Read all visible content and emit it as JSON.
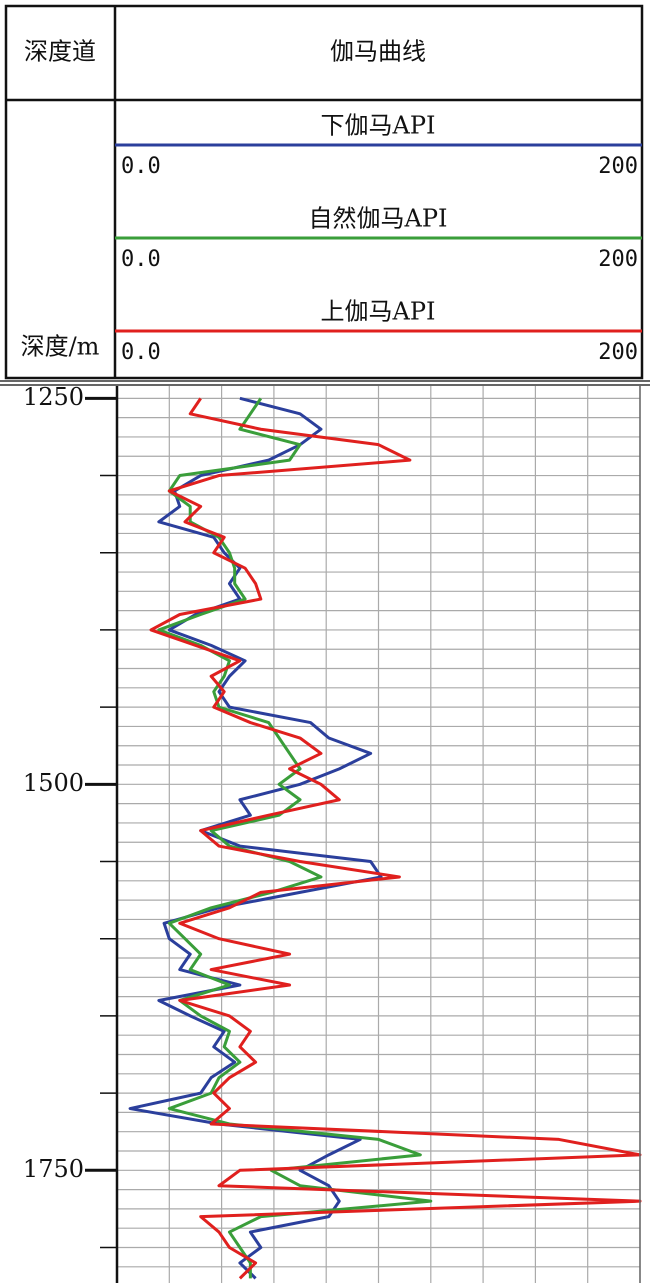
{
  "chart_data": {
    "type": "line",
    "header": {
      "depth_track": "深度道",
      "curve_track": "伽马曲线",
      "depth_label": "深度/m"
    },
    "y": [
      1250,
      1260,
      1270,
      1280,
      1290,
      1300,
      1310,
      1320,
      1330,
      1340,
      1350,
      1360,
      1370,
      1380,
      1390,
      1400,
      1410,
      1420,
      1430,
      1440,
      1450,
      1460,
      1470,
      1480,
      1490,
      1500,
      1510,
      1520,
      1530,
      1540,
      1550,
      1560,
      1570,
      1580,
      1590,
      1600,
      1610,
      1620,
      1630,
      1640,
      1650,
      1660,
      1670,
      1680,
      1690,
      1700,
      1710,
      1720,
      1730,
      1740,
      1750,
      1760,
      1770,
      1780,
      1790,
      1800,
      1810,
      1820
    ],
    "ylim": [
      1242,
      1823
    ],
    "yticks": [
      1250,
      1500,
      1750
    ],
    "yminor_step": 50,
    "ygrid_step": 12.5,
    "xlim": [
      0,
      200
    ],
    "xticks": [
      {
        "value": 0,
        "label": "0.0"
      },
      200
    ],
    "xgrid_step": 20,
    "grid": true,
    "series": [
      {
        "name": "下伽马API",
        "color": "#2b3f9c",
        "values": [
          47,
          70,
          78,
          70,
          58,
          32,
          22,
          24,
          16,
          37,
          41,
          47,
          43,
          47,
          30,
          20,
          36,
          49,
          43,
          39,
          43,
          74,
          81,
          97,
          85,
          70,
          47,
          51,
          32,
          47,
          97,
          101,
          70,
          39,
          18,
          20,
          28,
          24,
          47,
          16,
          28,
          41,
          37,
          45,
          36,
          32,
          5,
          39,
          93,
          81,
          70,
          81,
          85,
          81,
          51,
          55,
          47,
          53
        ]
      },
      {
        "name": "自然伽马API",
        "color": "#3a9e3a",
        "values": [
          55,
          51,
          47,
          70,
          66,
          24,
          20,
          28,
          28,
          39,
          43,
          45,
          45,
          49,
          32,
          16,
          32,
          43,
          41,
          37,
          39,
          58,
          62,
          66,
          70,
          62,
          70,
          62,
          36,
          43,
          66,
          78,
          59,
          36,
          20,
          26,
          32,
          28,
          43,
          24,
          32,
          43,
          41,
          47,
          39,
          36,
          20,
          43,
          100,
          116,
          59,
          70,
          120,
          55,
          43,
          47,
          51,
          51
        ]
      },
      {
        "name": "上伽马API",
        "color": "#e0201e",
        "values": [
          32,
          28,
          55,
          100,
          112,
          39,
          20,
          32,
          26,
          41,
          37,
          49,
          53,
          55,
          24,
          13,
          30,
          47,
          36,
          41,
          37,
          51,
          70,
          78,
          66,
          78,
          85,
          58,
          32,
          39,
          70,
          108,
          55,
          43,
          24,
          39,
          66,
          36,
          66,
          24,
          43,
          51,
          47,
          53,
          43,
          37,
          43,
          36,
          169,
          200,
          47,
          39,
          200,
          32,
          39,
          43,
          53,
          47
        ]
      }
    ]
  }
}
